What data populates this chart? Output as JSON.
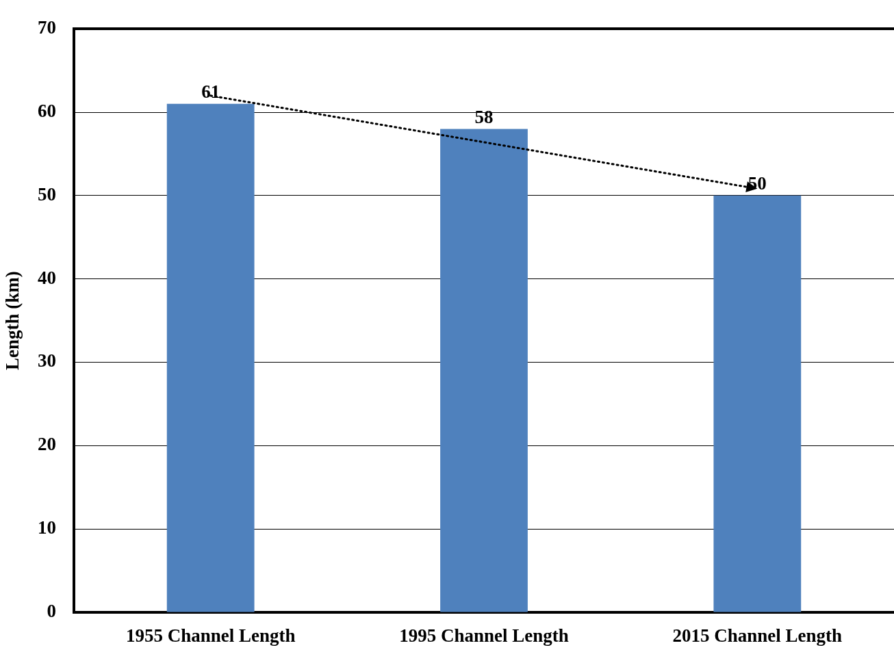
{
  "chart_data": {
    "type": "bar",
    "ylabel": "Length (km)",
    "categories": [
      "1955 Channel Length",
      "1995 Channel Length",
      "2015 Channel Length"
    ],
    "values": [
      61,
      58,
      50
    ],
    "color": "#4f81bd",
    "ylim": [
      0,
      70
    ],
    "yticks": [
      0,
      10,
      20,
      30,
      40,
      50,
      60,
      70
    ],
    "grid": "y",
    "data_labels": true
  }
}
